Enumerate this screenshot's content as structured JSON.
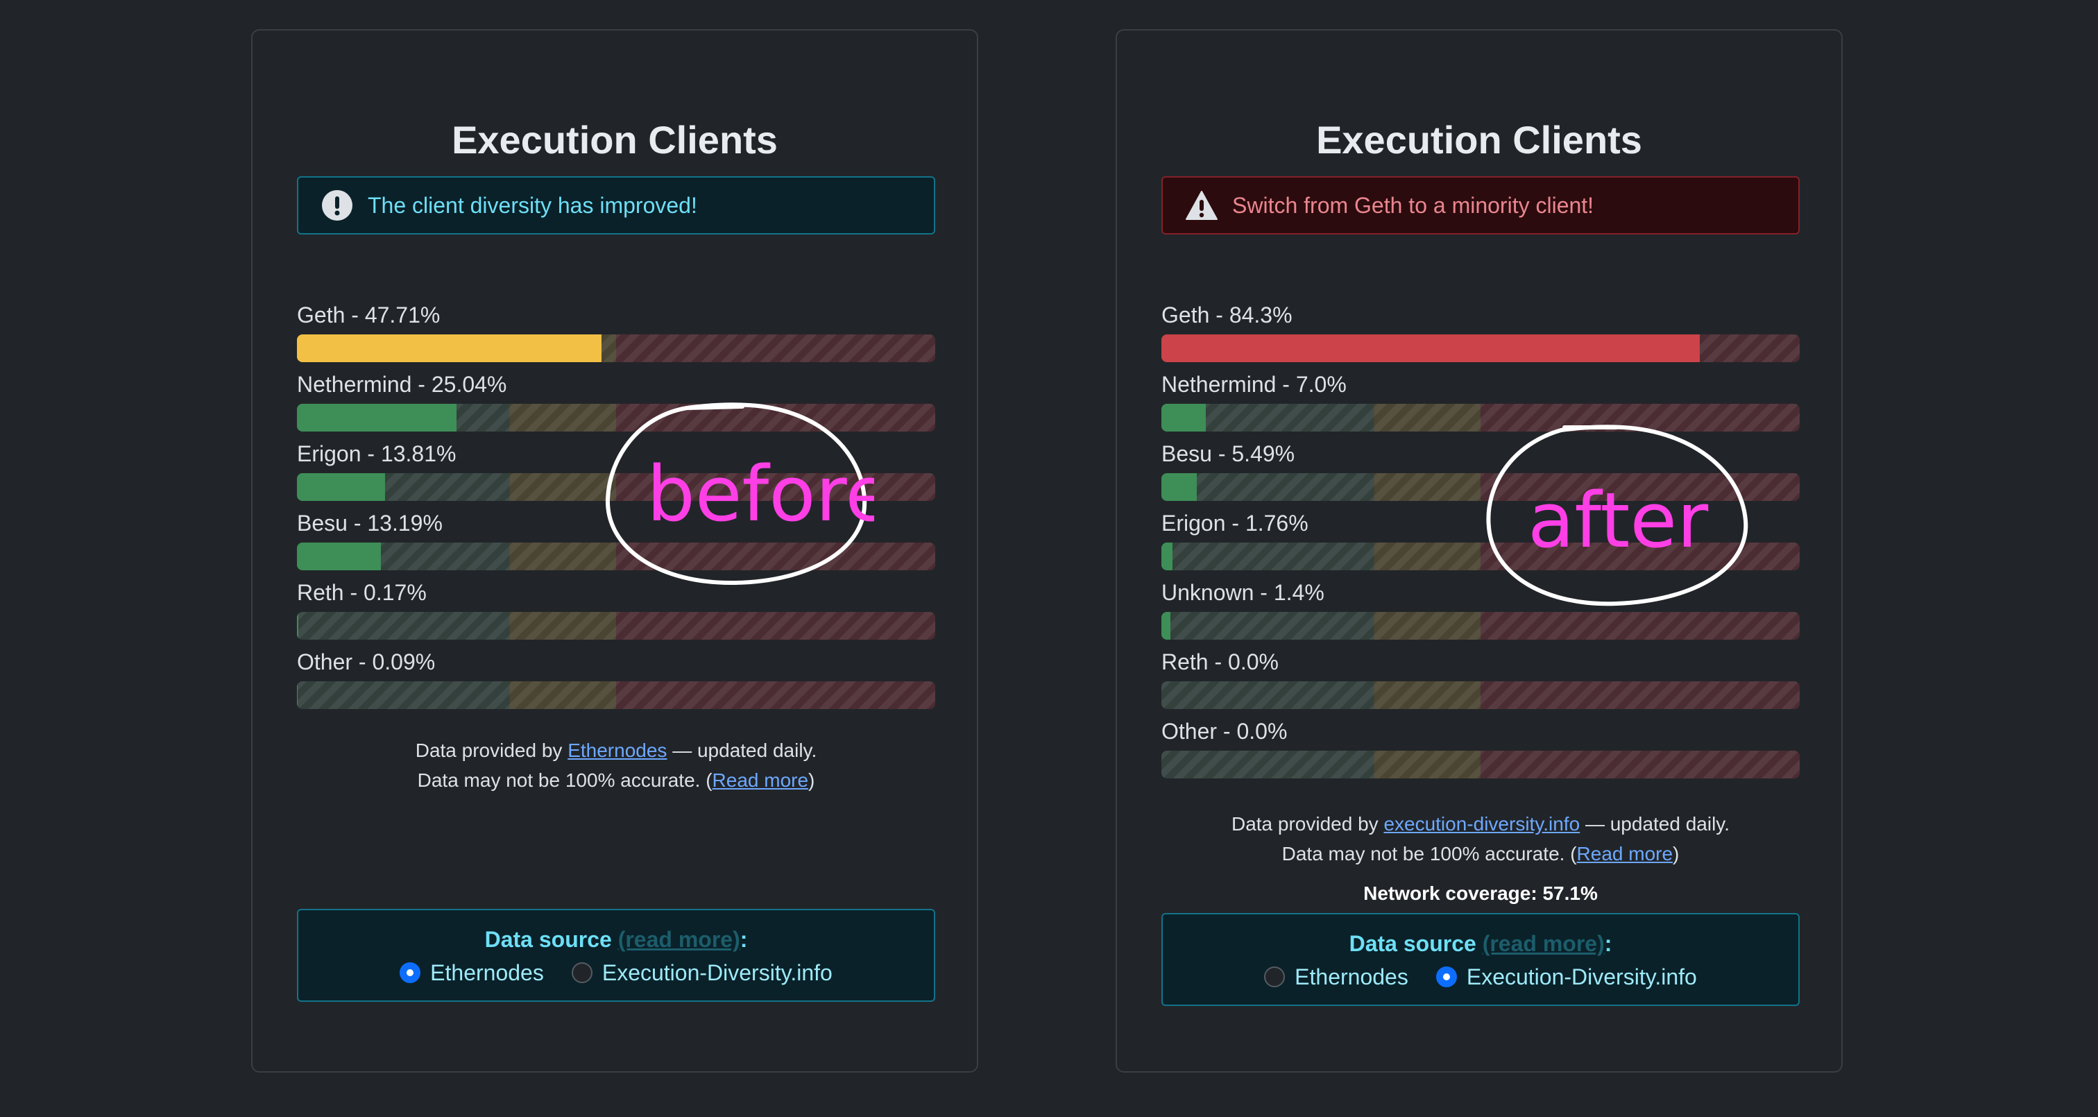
{
  "cards": [
    {
      "title": "Execution Clients",
      "alert": {
        "type": "info",
        "icon": "exclamation-circle-icon",
        "text": "The client diversity has improved!"
      },
      "clients": [
        {
          "label": "Geth - 47.71%",
          "percent": 47.71,
          "color": "#f2c044"
        },
        {
          "label": "Nethermind - 25.04%",
          "percent": 25.04,
          "color": "#3e8e57"
        },
        {
          "label": "Erigon - 13.81%",
          "percent": 13.81,
          "color": "#3e8e57"
        },
        {
          "label": "Besu - 13.19%",
          "percent": 13.19,
          "color": "#3e8e57"
        },
        {
          "label": "Reth - 0.17%",
          "percent": 0.17,
          "color": "#3e8e57"
        },
        {
          "label": "Other - 0.09%",
          "percent": 0.09,
          "color": "#3e8e57"
        }
      ],
      "footer": {
        "provided_prefix": "Data provided by ",
        "provider_link": "Ethernodes",
        "provided_suffix": " — updated daily.",
        "accuracy_prefix": "Data may not be 100% accurate. (",
        "read_more": "Read more",
        "accuracy_suffix": ")"
      },
      "source": {
        "title": "Data source",
        "read_more": "(read more)",
        "colon": ":",
        "options": [
          {
            "label": "Ethernodes",
            "checked": true
          },
          {
            "label": "Execution-Diversity.info",
            "checked": false
          }
        ]
      },
      "annotation": "before"
    },
    {
      "title": "Execution Clients",
      "alert": {
        "type": "danger",
        "icon": "warning-triangle-icon",
        "text": "Switch from Geth to a minority client!"
      },
      "clients": [
        {
          "label": "Geth - 84.3%",
          "percent": 84.3,
          "color": "#cc4349"
        },
        {
          "label": "Nethermind - 7.0%",
          "percent": 7.0,
          "color": "#3e8e57"
        },
        {
          "label": "Besu - 5.49%",
          "percent": 5.49,
          "color": "#3e8e57"
        },
        {
          "label": "Erigon - 1.76%",
          "percent": 1.76,
          "color": "#3e8e57"
        },
        {
          "label": "Unknown - 1.4%",
          "percent": 1.4,
          "color": "#3e8e57"
        },
        {
          "label": "Reth - 0.0%",
          "percent": 0.0,
          "color": "#3e8e57"
        },
        {
          "label": "Other - 0.0%",
          "percent": 0.0,
          "color": "#3e8e57"
        }
      ],
      "footer": {
        "provided_prefix": "Data provided by ",
        "provider_link": "execution-diversity.info",
        "provided_suffix": " — updated daily.",
        "accuracy_prefix": "Data may not be 100% accurate. (",
        "read_more": "Read more",
        "accuracy_suffix": ")"
      },
      "coverage": "Network coverage: 57.1%",
      "source": {
        "title": "Data source",
        "read_more": "(read more)",
        "colon": ":",
        "options": [
          {
            "label": "Ethernodes",
            "checked": false
          },
          {
            "label": "Execution-Diversity.info",
            "checked": true
          }
        ]
      },
      "annotation": "after"
    }
  ],
  "colors": {
    "background": "#212429",
    "info_text": "#6edff6",
    "danger_text": "#ea868f",
    "link": "#6ea8fe",
    "annotation": "#ff3fe6"
  }
}
